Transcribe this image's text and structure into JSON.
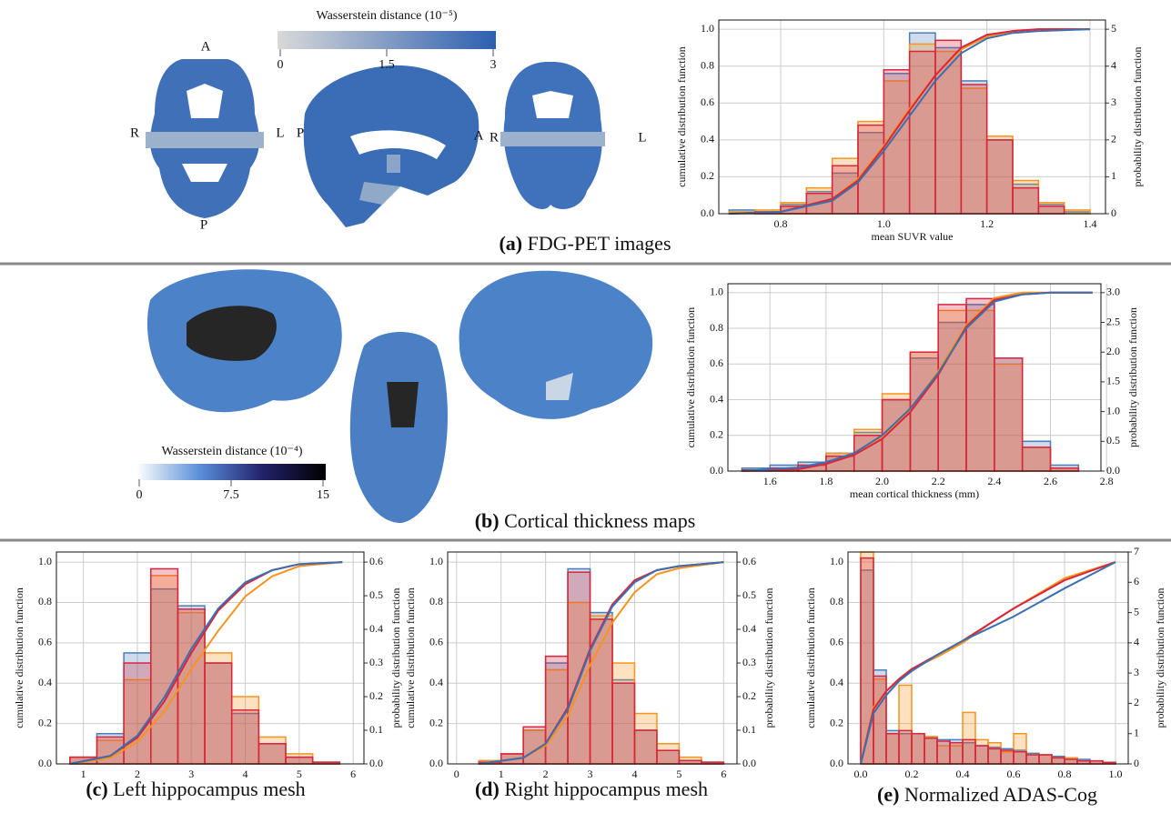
{
  "figure": {
    "panel_a": {
      "caption_letter": "(a)",
      "caption": "FDG-PET images",
      "orientation_labels": [
        "A",
        "R",
        "L",
        "P",
        "P",
        "A",
        "R",
        "L"
      ],
      "colorbar": {
        "title": "Wasserstein distance (10⁻⁵)",
        "lim": [
          0,
          3
        ],
        "ticks": [
          0,
          1.5,
          3
        ],
        "colors": [
          "#d9d9d9",
          "#2d5fb0"
        ]
      }
    },
    "panel_b": {
      "caption_letter": "(b)",
      "caption": "Cortical thickness maps",
      "colorbar": {
        "title": "Wasserstein distance (10⁻⁴)",
        "lim": [
          0,
          15
        ],
        "ticks": [
          0,
          7.5,
          15
        ],
        "colors": [
          "#ffffff",
          "#5a8fd8",
          "#22216b",
          "#000000"
        ]
      }
    },
    "panel_c": {
      "caption_letter": "(c)",
      "caption": "Left hippocampus mesh"
    },
    "panel_d": {
      "caption_letter": "(d)",
      "caption": "Right hippocampus mesh"
    },
    "panel_e": {
      "caption_letter": "(e)",
      "caption": "Normalized ADAS-Cog"
    }
  },
  "chart_data": [
    {
      "type": "histogram",
      "xlabel": "mean SUVR value",
      "ylabel": "cumulative distribution function",
      "y2label": "probability distribution function",
      "xlim": [
        0.68,
        1.43
      ],
      "xticks": [
        0.8,
        {
          "value": 1,
          "label": "1.0"
        },
        1.2,
        1.4
      ],
      "ylim": [
        0,
        1.05
      ],
      "yticks": [
        {
          "value": 0,
          "label": "0.0"
        },
        0.2,
        0.4,
        0.6,
        0.8,
        {
          "value": 1,
          "label": "1.0"
        }
      ],
      "y2lim": [
        0,
        5.25
      ],
      "y2ticks": [
        0,
        1,
        2,
        3,
        4,
        5
      ],
      "grid": true,
      "bins": [
        0.7,
        0.75,
        0.8,
        0.85,
        0.9,
        0.95,
        1.0,
        1.05,
        1.1,
        1.15,
        1.2,
        1.25,
        1.3,
        1.35,
        1.4
      ],
      "series": [
        {
          "color": "#4a7ebb",
          "axis": "y2",
          "values": [
            0.1,
            0.05,
            0.25,
            0.6,
            1.1,
            2.2,
            3.8,
            4.9,
            4.5,
            3.6,
            2.0,
            0.8,
            0.25,
            0.05
          ]
        },
        {
          "color": "#f7941d",
          "axis": "y2",
          "values": [
            0.05,
            0.1,
            0.3,
            0.7,
            1.5,
            2.5,
            3.6,
            4.6,
            4.4,
            3.4,
            2.1,
            0.9,
            0.3,
            0.1
          ]
        },
        {
          "color": "#d7263d",
          "axis": "y2",
          "values": [
            0.0,
            0.05,
            0.2,
            0.55,
            1.3,
            2.4,
            3.9,
            4.4,
            4.7,
            3.5,
            2.0,
            0.7,
            0.2,
            0.0
          ]
        }
      ],
      "cdf_x": [
        0.7,
        0.8,
        0.9,
        0.95,
        1.0,
        1.05,
        1.1,
        1.15,
        1.2,
        1.25,
        1.3,
        1.4
      ],
      "lines": [
        {
          "color": "#f7941d",
          "values": [
            0,
            0.01,
            0.08,
            0.19,
            0.37,
            0.57,
            0.75,
            0.89,
            0.96,
            0.99,
            1.0,
            1.0
          ]
        },
        {
          "color": "#d7263d",
          "values": [
            0,
            0.01,
            0.08,
            0.18,
            0.36,
            0.56,
            0.75,
            0.9,
            0.97,
            0.99,
            1.0,
            1.0
          ]
        },
        {
          "color": "#3b6fb0",
          "values": [
            0,
            0.01,
            0.07,
            0.17,
            0.34,
            0.53,
            0.72,
            0.87,
            0.95,
            0.98,
            0.99,
            1.0
          ]
        }
      ]
    },
    {
      "type": "histogram",
      "xlabel": "mean cortical thickness (mm)",
      "ylabel": "cumulative distribution function",
      "y2label": "probability distribution function",
      "xlim": [
        1.45,
        2.78
      ],
      "xticks": [
        1.6,
        1.8,
        {
          "value": 2,
          "label": "2.0"
        },
        2.2,
        2.4,
        2.6,
        2.8
      ],
      "ylim": [
        0,
        1.05
      ],
      "yticks": [
        {
          "value": 0,
          "label": "0.0"
        },
        0.2,
        0.4,
        0.6,
        0.8,
        {
          "value": 1,
          "label": "1.0"
        }
      ],
      "y2lim": [
        0,
        3.15
      ],
      "y2ticks": [
        {
          "value": 0,
          "label": "0.0"
        },
        0.5,
        {
          "value": 1,
          "label": "1.0"
        },
        1.5,
        {
          "value": 2,
          "label": "2.0"
        },
        2.5,
        {
          "value": 3,
          "label": "3.0"
        }
      ],
      "grid": true,
      "bins": [
        1.5,
        1.6,
        1.7,
        1.8,
        1.9,
        2.0,
        2.1,
        2.2,
        2.3,
        2.4,
        2.5,
        2.6,
        2.7
      ],
      "series": [
        {
          "color": "#4a7ebb",
          "axis": "y2",
          "values": [
            0.05,
            0.1,
            0.15,
            0.3,
            0.65,
            1.2,
            1.9,
            2.5,
            2.8,
            1.9,
            0.5,
            0.1
          ]
        },
        {
          "color": "#f7941d",
          "axis": "y2",
          "values": [
            0.02,
            0.05,
            0.1,
            0.3,
            0.7,
            1.3,
            2.0,
            2.7,
            2.7,
            1.8,
            0.4,
            0.05
          ]
        },
        {
          "color": "#d7263d",
          "axis": "y2",
          "values": [
            0.02,
            0.05,
            0.1,
            0.25,
            0.6,
            1.2,
            2.0,
            2.8,
            2.9,
            1.9,
            0.4,
            0.05
          ]
        }
      ],
      "cdf_x": [
        1.5,
        1.7,
        1.8,
        1.9,
        2.0,
        2.1,
        2.2,
        2.3,
        2.4,
        2.5,
        2.6,
        2.75
      ],
      "lines": [
        {
          "color": "#f7941d",
          "values": [
            0,
            0.01,
            0.04,
            0.09,
            0.19,
            0.34,
            0.56,
            0.82,
            0.97,
            1.0,
            1.0,
            1.0
          ]
        },
        {
          "color": "#d7263d",
          "values": [
            0,
            0.01,
            0.04,
            0.09,
            0.18,
            0.33,
            0.54,
            0.81,
            0.96,
            0.99,
            1.0,
            1.0
          ]
        },
        {
          "color": "#3b6fb0",
          "values": [
            0,
            0.02,
            0.05,
            0.1,
            0.2,
            0.35,
            0.55,
            0.8,
            0.95,
            0.99,
            1.0,
            1.0
          ]
        }
      ]
    },
    {
      "type": "histogram",
      "ylabel": "cumulative distribution function",
      "y2label": "probability distribution function",
      "xlim": [
        0.5,
        6.2
      ],
      "xticks": [
        1,
        2,
        3,
        4,
        5,
        6
      ],
      "ylim": [
        0,
        1.05
      ],
      "yticks": [
        {
          "value": 0,
          "label": "0.0"
        },
        0.2,
        0.4,
        0.6,
        0.8,
        {
          "value": 1,
          "label": "1.0"
        }
      ],
      "y2lim": [
        0,
        0.63
      ],
      "y2ticks": [
        {
          "value": 0,
          "label": "0.0"
        },
        0.1,
        0.2,
        0.3,
        0.4,
        0.5,
        0.6
      ],
      "grid": true,
      "bins": [
        0.75,
        1.25,
        1.75,
        2.25,
        2.75,
        3.25,
        3.75,
        4.25,
        4.75,
        5.25,
        5.75
      ],
      "series": [
        {
          "color": "#4a7ebb",
          "axis": "y2",
          "values": [
            0.02,
            0.09,
            0.33,
            0.52,
            0.47,
            0.3,
            0.15,
            0.06,
            0.02,
            0.005
          ]
        },
        {
          "color": "#f7941d",
          "axis": "y2",
          "values": [
            0.02,
            0.07,
            0.25,
            0.56,
            0.45,
            0.33,
            0.2,
            0.08,
            0.03,
            0.005
          ]
        },
        {
          "color": "#d7263d",
          "axis": "y2",
          "values": [
            0.02,
            0.08,
            0.3,
            0.58,
            0.46,
            0.3,
            0.16,
            0.06,
            0.02,
            0.005
          ]
        }
      ],
      "cdf_x": [
        0.75,
        1.5,
        2.0,
        2.5,
        3.0,
        3.5,
        4.0,
        4.5,
        5.0,
        5.8
      ],
      "lines": [
        {
          "color": "#f7941d",
          "values": [
            0,
            0.03,
            0.11,
            0.26,
            0.47,
            0.66,
            0.83,
            0.93,
            0.98,
            1.0
          ]
        },
        {
          "color": "#d7263d",
          "values": [
            0,
            0.04,
            0.13,
            0.31,
            0.55,
            0.76,
            0.89,
            0.96,
            0.99,
            1.0
          ]
        },
        {
          "color": "#3b6fb0",
          "values": [
            0,
            0.04,
            0.14,
            0.33,
            0.57,
            0.77,
            0.9,
            0.96,
            0.99,
            1.0
          ]
        }
      ]
    },
    {
      "type": "histogram",
      "ylabel": "cumulative distribution function",
      "y2label": "probability distribution function",
      "xlim": [
        -0.2,
        6.3
      ],
      "xticks": [
        0,
        1,
        2,
        3,
        4,
        5,
        6
      ],
      "ylim": [
        0,
        1.05
      ],
      "yticks": [
        {
          "value": 0,
          "label": "0.0"
        },
        0.2,
        0.4,
        0.6,
        0.8,
        {
          "value": 1,
          "label": "1.0"
        }
      ],
      "y2lim": [
        0,
        0.63
      ],
      "y2ticks": [
        {
          "value": 0,
          "label": "0.0"
        },
        0.1,
        0.2,
        0.3,
        0.4,
        0.5,
        0.6
      ],
      "grid": true,
      "bins": [
        0.5,
        1.0,
        1.5,
        2.0,
        2.5,
        3.0,
        3.5,
        4.0,
        4.5,
        5.0,
        5.5,
        6.0
      ],
      "series": [
        {
          "color": "#4a7ebb",
          "axis": "y2",
          "values": [
            0.005,
            0.03,
            0.1,
            0.3,
            0.58,
            0.45,
            0.25,
            0.1,
            0.04,
            0.01,
            0.005
          ]
        },
        {
          "color": "#f7941d",
          "axis": "y2",
          "values": [
            0.01,
            0.03,
            0.1,
            0.28,
            0.48,
            0.44,
            0.3,
            0.15,
            0.06,
            0.02,
            0.005
          ]
        },
        {
          "color": "#d7263d",
          "axis": "y2",
          "values": [
            0.005,
            0.03,
            0.11,
            0.32,
            0.57,
            0.43,
            0.24,
            0.1,
            0.04,
            0.01,
            0.005
          ]
        }
      ],
      "cdf_x": [
        0.5,
        1.5,
        2.0,
        2.5,
        3.0,
        3.5,
        4.0,
        4.5,
        5.0,
        6.0
      ],
      "lines": [
        {
          "color": "#f7941d",
          "values": [
            0,
            0.03,
            0.09,
            0.24,
            0.49,
            0.7,
            0.85,
            0.94,
            0.97,
            1.0
          ]
        },
        {
          "color": "#d7263d",
          "values": [
            0,
            0.03,
            0.1,
            0.28,
            0.57,
            0.79,
            0.91,
            0.96,
            0.98,
            1.0
          ]
        },
        {
          "color": "#3b6fb0",
          "values": [
            0,
            0.03,
            0.1,
            0.27,
            0.56,
            0.78,
            0.9,
            0.96,
            0.98,
            1.0
          ]
        }
      ]
    },
    {
      "type": "histogram",
      "ylabel": "cumulative distribution function",
      "y2label": "probability distribution function",
      "xlim": [
        -0.05,
        1.05
      ],
      "xticks": [
        {
          "value": 0,
          "label": "0.0"
        },
        0.2,
        0.4,
        0.6,
        0.8,
        {
          "value": 1,
          "label": "1.0"
        }
      ],
      "ylim": [
        0,
        1.05
      ],
      "yticks": [
        {
          "value": 0,
          "label": "0.0"
        },
        0.2,
        0.4,
        0.6,
        0.8,
        {
          "value": 1,
          "label": "1.0"
        }
      ],
      "y2lim": [
        0,
        7
      ],
      "y2ticks": [
        0,
        1,
        2,
        3,
        4,
        5,
        6,
        7
      ],
      "grid": true,
      "bins": [
        0,
        0.05,
        0.1,
        0.15,
        0.2,
        0.25,
        0.3,
        0.35,
        0.4,
        0.45,
        0.5,
        0.55,
        0.6,
        0.65,
        0.7,
        0.75,
        0.8,
        0.85,
        0.9,
        0.95,
        1.0
      ],
      "series": [
        {
          "color": "#4a7ebb",
          "axis": "y2",
          "values": [
            6.4,
            3.1,
            1.1,
            1.0,
            1.0,
            0.9,
            0.8,
            0.8,
            0.7,
            0.6,
            0.55,
            0.5,
            0.45,
            0.35,
            0.3,
            0.25,
            0.2,
            0.15,
            0.1,
            0.05
          ]
        },
        {
          "color": "#f7941d",
          "axis": "y2",
          "values": [
            7.0,
            2.8,
            1.0,
            2.6,
            1.0,
            0.9,
            0.6,
            0.6,
            1.7,
            0.8,
            0.7,
            0.4,
            1.0,
            0.3,
            0.3,
            0.2,
            0.2,
            0.1,
            0.1,
            0.05
          ]
        },
        {
          "color": "#d7263d",
          "axis": "y2",
          "values": [
            6.8,
            2.9,
            1.0,
            1.1,
            1.0,
            0.85,
            0.75,
            0.7,
            0.8,
            0.6,
            0.5,
            0.45,
            0.4,
            0.3,
            0.3,
            0.2,
            0.15,
            0.1,
            0.1,
            0.05
          ]
        }
      ],
      "cdf_x": [
        0,
        0.05,
        0.1,
        0.15,
        0.2,
        0.3,
        0.4,
        0.5,
        0.6,
        0.8,
        1.0
      ],
      "lines": [
        {
          "color": "#f7941d",
          "values": [
            0,
            0.28,
            0.36,
            0.42,
            0.47,
            0.53,
            0.6,
            0.69,
            0.77,
            0.92,
            1.0
          ]
        },
        {
          "color": "#d7263d",
          "values": [
            0,
            0.27,
            0.36,
            0.42,
            0.47,
            0.54,
            0.61,
            0.69,
            0.77,
            0.91,
            1.0
          ]
        },
        {
          "color": "#3b6fb0",
          "values": [
            0,
            0.25,
            0.34,
            0.41,
            0.46,
            0.54,
            0.61,
            0.67,
            0.73,
            0.87,
            1.0
          ]
        }
      ]
    }
  ]
}
